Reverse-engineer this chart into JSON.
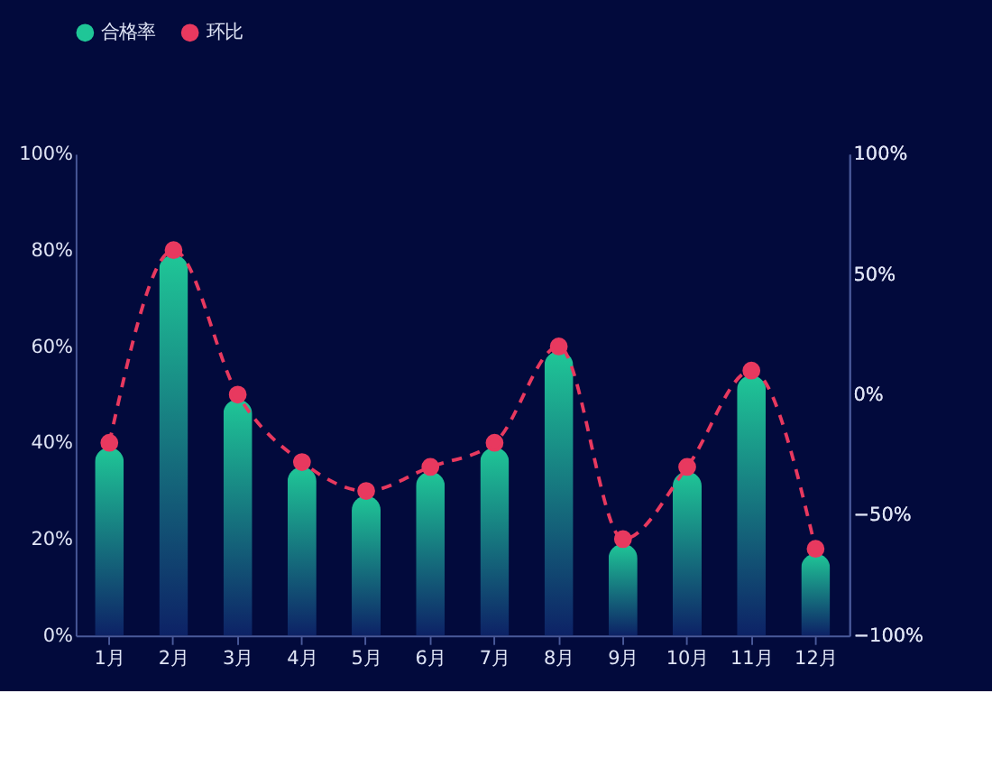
{
  "chart_data": {
    "type": "bar",
    "categories": [
      "1月",
      "2月",
      "3月",
      "4月",
      "5月",
      "6月",
      "7月",
      "8月",
      "9月",
      "10月",
      "11月",
      "12月"
    ],
    "series": [
      {
        "name": "合格率",
        "color": "#1fc697",
        "values": [
          39,
          79,
          49,
          35,
          29,
          34,
          39,
          59,
          19,
          34,
          54,
          17
        ]
      },
      {
        "name": "环比",
        "type": "line",
        "axis": "y2",
        "color": "#e8395f",
        "line_style": "dashed",
        "marker": "circle",
        "values": [
          -20,
          60,
          0,
          -28,
          -40,
          -30,
          -20,
          20,
          -60,
          -30,
          10,
          -64
        ]
      }
    ],
    "ylim": [
      0,
      100
    ],
    "yticks": [
      {
        "value": 0,
        "label": "0%"
      },
      {
        "value": 20,
        "label": "20%"
      },
      {
        "value": 40,
        "label": "40%"
      },
      {
        "value": 60,
        "label": "60%"
      },
      {
        "value": 80,
        "label": "80%"
      },
      {
        "value": 100,
        "label": "100%"
      }
    ],
    "y2lim": [
      -100,
      100
    ],
    "y2ticks": [
      {
        "value": -100,
        "label": "−100%"
      },
      {
        "value": -50,
        "label": "−50%"
      },
      {
        "value": 0,
        "label": "0%"
      },
      {
        "value": 50,
        "label": "50%"
      },
      {
        "value": 100,
        "label": "100%"
      }
    ],
    "grid": false,
    "legend": "top"
  }
}
